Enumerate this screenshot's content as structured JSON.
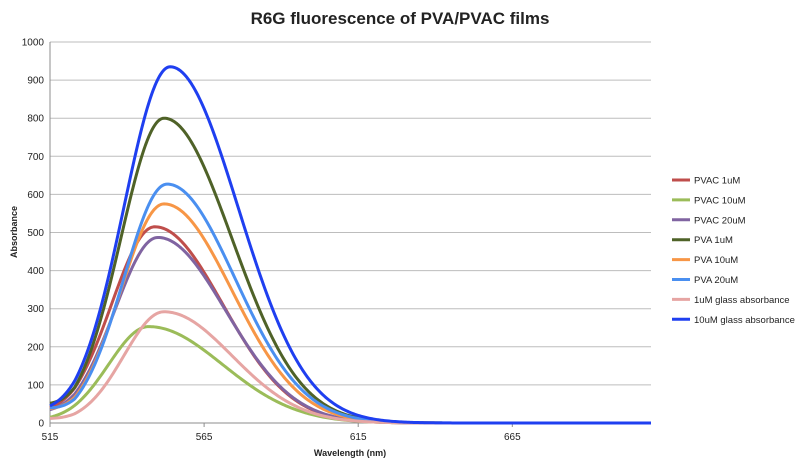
{
  "chart_data": {
    "type": "line",
    "title": "R6G fluorescence of PVA/PVAC films",
    "xlabel": "Wavelength (nm)",
    "ylabel": "Absorbance",
    "xlim": [
      515,
      710
    ],
    "ylim": [
      0,
      1000
    ],
    "x_ticks": [
      515,
      565,
      615,
      665
    ],
    "y_ticks": [
      0,
      100,
      200,
      300,
      400,
      500,
      600,
      700,
      800,
      900,
      1000
    ],
    "grid": "horizontal",
    "legend_position": "right",
    "series": [
      {
        "name": "PVAC 1uM",
        "color": "#bf4e4b",
        "peak_x": 549,
        "peak_y": 515,
        "sigma_left": 14,
        "sigma_right": 22,
        "y_start": 40
      },
      {
        "name": "PVAC 10uM",
        "color": "#9bbc59",
        "peak_x": 547,
        "peak_y": 253,
        "sigma_left": 13,
        "sigma_right": 24,
        "y_start": 15
      },
      {
        "name": "PVAC 20uM",
        "color": "#8064a1",
        "peak_x": 550,
        "peak_y": 487,
        "sigma_left": 14,
        "sigma_right": 22,
        "y_start": 35
      },
      {
        "name": "PVA 1uM",
        "color": "#4f6228",
        "peak_x": 552,
        "peak_y": 800,
        "sigma_left": 14,
        "sigma_right": 22,
        "y_start": 52
      },
      {
        "name": "PVA 10uM",
        "color": "#f79646",
        "peak_x": 552,
        "peak_y": 575,
        "sigma_left": 14,
        "sigma_right": 22,
        "y_start": 38
      },
      {
        "name": "PVA 20uM",
        "color": "#4a8ff0",
        "peak_x": 553,
        "peak_y": 627,
        "sigma_left": 14,
        "sigma_right": 22,
        "y_start": 40
      },
      {
        "name": "1uM glass absorbance",
        "color": "#e6a5a3",
        "peak_x": 552,
        "peak_y": 292,
        "sigma_left": 13,
        "sigma_right": 22,
        "y_start": 12
      },
      {
        "name": "10uM glass absorbance",
        "color": "#1f3ff0",
        "peak_x": 554,
        "peak_y": 935,
        "sigma_left": 15,
        "sigma_right": 22,
        "y_start": 45
      }
    ]
  }
}
